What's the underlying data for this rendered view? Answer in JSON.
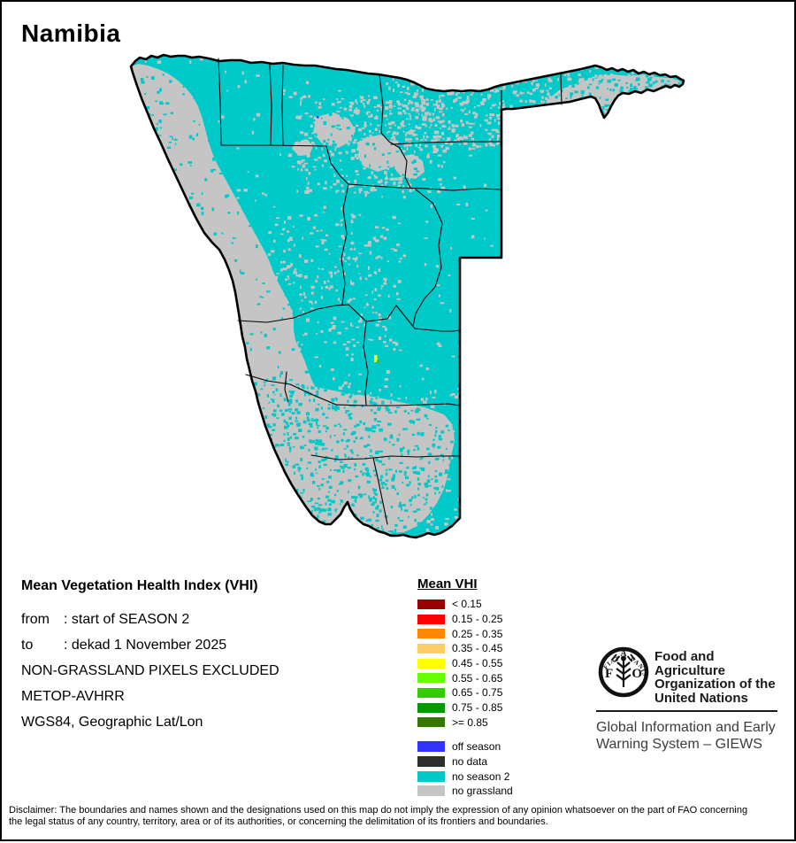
{
  "title": "Namibia",
  "colors": {
    "no_season_2": "#00C9C9",
    "no_grassland": "#C5C5C5",
    "off_season": "#3333FF",
    "no_data": "#2E2E2E",
    "outline": "#000000",
    "anomaly_yellow": "#FFFF00",
    "anomaly_green": "#44BB00"
  },
  "info_block": {
    "heading": "Mean Vegetation Health Index (VHI)",
    "lines": [
      {
        "label": "from",
        "value": ": start of SEASON 2"
      },
      {
        "label": "to",
        "value": ": dekad 1 November 2025"
      },
      {
        "label": "",
        "value": "NON-GRASSLAND PIXELS EXCLUDED"
      },
      {
        "label": "",
        "value": "METOP-AVHRR"
      },
      {
        "label": "",
        "value": "WGS84, Geographic Lat/Lon"
      }
    ]
  },
  "legend": {
    "heading": "Mean VHI",
    "classes": [
      {
        "label": "< 0.15",
        "color": "#990000"
      },
      {
        "label": "0.15 - 0.25",
        "color": "#FF0000"
      },
      {
        "label": "0.25 - 0.35",
        "color": "#FF8800"
      },
      {
        "label": "0.35 - 0.45",
        "color": "#FFCC66"
      },
      {
        "label": "0.45 - 0.55",
        "color": "#FFFF00"
      },
      {
        "label": "0.55 - 0.65",
        "color": "#66FF00"
      },
      {
        "label": "0.65 - 0.75",
        "color": "#33CC00"
      },
      {
        "label": "0.75 - 0.85",
        "color": "#009900"
      },
      {
        "label": ">= 0.85",
        "color": "#337700"
      }
    ],
    "status_classes": [
      {
        "label": "off season",
        "color": "#3333FF"
      },
      {
        "label": "no data",
        "color": "#2E2E2E"
      },
      {
        "label": "no season 2",
        "color": "#00C9C9"
      },
      {
        "label": "no grassland",
        "color": "#C5C5C5"
      }
    ]
  },
  "fao": {
    "org_lines": [
      "Food and Agriculture",
      "Organization of the",
      "United Nations"
    ],
    "giews_lines": [
      "Global Information and Early",
      "Warning System – GIEWS"
    ],
    "logo_letters": {
      "f": "F",
      "a": "A",
      "o": "O"
    },
    "logo_motto": {
      "left": "FIAT",
      "right": "PANIS"
    }
  },
  "disclaimer": "Disclaimer: The boundaries and names shown and the designations used on this map do not imply the expression of any opinion whatsoever on the part of FAO concerning the legal status of any country, territory, area or of its authorities, or concerning the delimitation of its frontiers and boundaries."
}
